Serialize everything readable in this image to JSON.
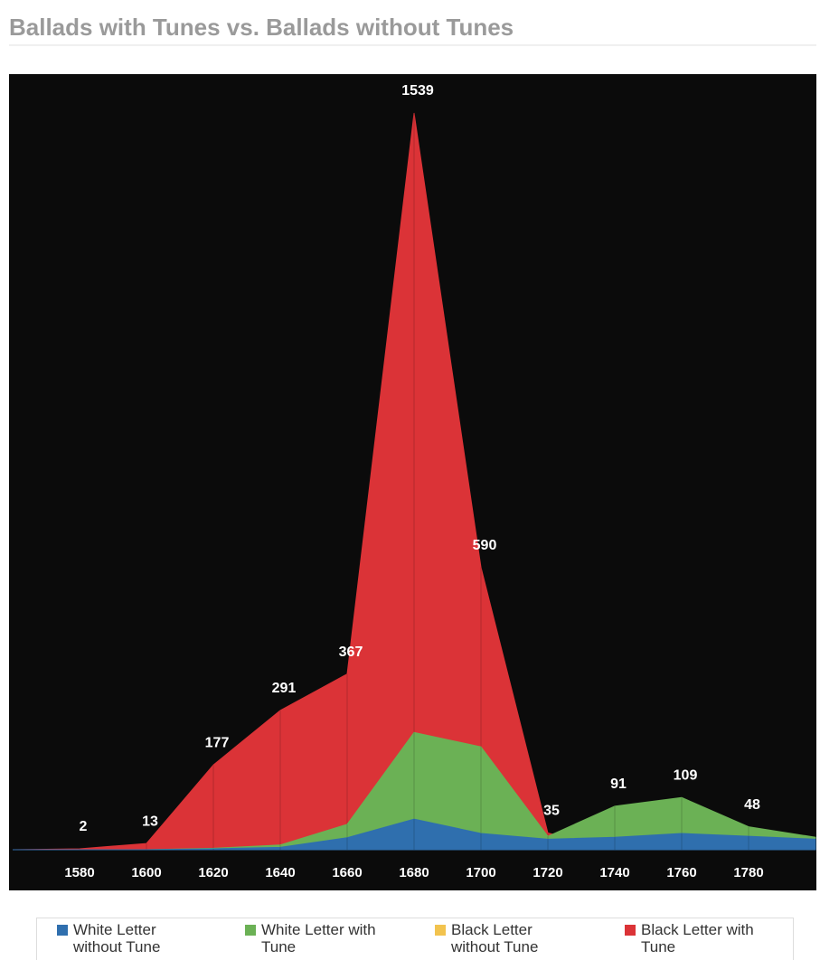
{
  "chart_data": {
    "type": "area",
    "stacked": false,
    "title": "Ballads with Tunes vs. Ballads without Tunes",
    "categories": [
      null,
      "1580",
      "1600",
      "1620",
      "1640",
      "1660",
      "1680",
      "1700",
      "1720",
      "1740",
      "1760",
      "1780",
      null
    ],
    "series": [
      {
        "name": "White Letter without Tune",
        "color": "#2f6fae",
        "values": [
          0,
          0,
          0,
          2,
          5,
          25,
          64,
          34,
          22,
          26,
          34,
          28,
          22
        ]
      },
      {
        "name": "White Letter with Tune",
        "color": "#6bb155",
        "values": [
          0,
          0,
          0,
          3,
          10,
          53,
          245,
          215,
          28,
          91,
          109,
          48,
          26
        ]
      },
      {
        "name": "Black Letter without Tune",
        "color": "#f2c34e",
        "values": [
          0,
          0,
          0,
          0,
          0,
          0,
          0,
          0,
          0,
          0,
          0,
          0,
          0
        ]
      },
      {
        "name": "Black Letter with Tune",
        "color": "#db3337",
        "values": [
          0,
          2,
          13,
          177,
          291,
          367,
          1539,
          590,
          35,
          0,
          0,
          0,
          0
        ]
      }
    ],
    "data_labels": true,
    "legend": "bottom"
  }
}
